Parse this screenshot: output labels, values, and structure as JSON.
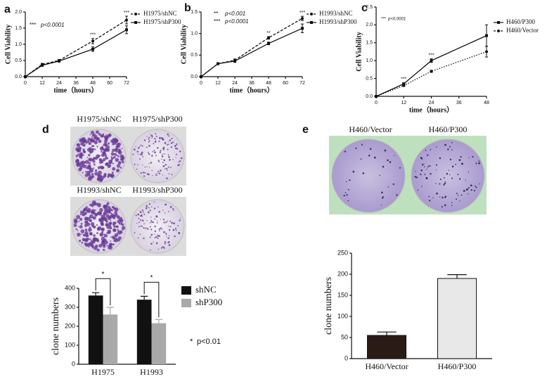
{
  "chart_data": [
    {
      "type": "line",
      "label": "a",
      "x": [
        0,
        12,
        24,
        48,
        72
      ],
      "xlim": [
        0,
        72
      ],
      "xticks": [
        0,
        12,
        24,
        36,
        48,
        60,
        72
      ],
      "ylim": [
        0,
        2
      ],
      "yticks": [
        {
          "value": 0,
          "label": "0.0"
        },
        {
          "value": 0.5,
          "label": "0.5"
        },
        {
          "value": 1,
          "label": "1.0"
        },
        {
          "value": 1.5,
          "label": "1.5"
        },
        {
          "value": 2,
          "label": "2.0"
        }
      ],
      "xlabel": "time（hours）",
      "ylabel": "Cell Viability",
      "series": [
        {
          "name": "H1975/shNC",
          "color": "#111111",
          "dash": true,
          "marker": "circle",
          "values": [
            0,
            0.38,
            0.5,
            1.1,
            1.75
          ],
          "errors": [
            null,
            0.03,
            0.03,
            0.08,
            0.12
          ]
        },
        {
          "name": "H1975/shP300",
          "color": "#111111",
          "dash": false,
          "marker": "square",
          "values": [
            0,
            0.35,
            0.48,
            0.85,
            1.45
          ],
          "errors": [
            null,
            0.03,
            0.03,
            0.07,
            0.12
          ]
        }
      ],
      "stats": [
        {
          "stars": "***",
          "p": "p<0.0001"
        }
      ],
      "significance": [
        {
          "x": 48,
          "label": "***"
        },
        {
          "x": 72,
          "label": "***"
        }
      ]
    },
    {
      "type": "line",
      "label": "b",
      "x": [
        0,
        12,
        24,
        48,
        72
      ],
      "xlim": [
        0,
        72
      ],
      "xticks": [
        0,
        12,
        24,
        36,
        48,
        60,
        72
      ],
      "ylim": [
        0,
        1.5
      ],
      "yticks": [
        {
          "value": 0,
          "label": "0.0"
        },
        {
          "value": 0.5,
          "label": "0.5"
        },
        {
          "value": 1,
          "label": "1.0"
        },
        {
          "value": 1.5,
          "label": "1.5"
        }
      ],
      "xlabel": "time（hours）",
      "ylabel": "Cell Viability",
      "series": [
        {
          "name": "H1993/shNC",
          "color": "#111111",
          "dash": true,
          "marker": "circle",
          "values": [
            0,
            0.3,
            0.38,
            0.9,
            1.35
          ],
          "errors": [
            null,
            0.02,
            0.03,
            0.03,
            0.05
          ]
        },
        {
          "name": "H1993/shP300",
          "color": "#111111",
          "dash": false,
          "marker": "square",
          "values": [
            0,
            0.3,
            0.36,
            0.77,
            1.12
          ],
          "errors": [
            null,
            0.02,
            0.03,
            0.03,
            0.1
          ]
        }
      ],
      "stats": [
        {
          "stars": "**",
          "p": "p<0.001"
        },
        {
          "stars": "***",
          "p": "p<0.0001"
        }
      ],
      "significance": [
        {
          "x": 48,
          "label": "**"
        },
        {
          "x": 72,
          "label": "***"
        }
      ]
    },
    {
      "type": "line",
      "label": "c",
      "x": [
        0,
        12,
        24,
        48
      ],
      "xlim": [
        0,
        48
      ],
      "xticks": [
        0,
        12,
        24,
        36,
        48
      ],
      "ylim": [
        0,
        2.5
      ],
      "yticks": [
        {
          "value": 0,
          "label": "0.0"
        },
        {
          "value": 0.5,
          "label": "0.5"
        },
        {
          "value": 1,
          "label": "1.0"
        },
        {
          "value": 1.5,
          "label": "1.5"
        },
        {
          "value": 2,
          "label": "2.0"
        },
        {
          "value": 2.5,
          "label": "2.5"
        }
      ],
      "xlabel": "time（hours）",
      "ylabel": "Cell Viability",
      "series": [
        {
          "name": "H460/P300",
          "color": "#111111",
          "dash": false,
          "marker": "square",
          "values": [
            0,
            0.35,
            1.0,
            1.7
          ],
          "errors": [
            null,
            0.03,
            0.05,
            0.3
          ]
        },
        {
          "name": "H460/Vector",
          "color": "#111111",
          "dash": true,
          "marker": "circle",
          "values": [
            0,
            0.3,
            0.7,
            1.25
          ],
          "errors": [
            null,
            0.02,
            0.03,
            0.15
          ]
        }
      ],
      "stats": [
        {
          "stars": "***",
          "p": "p<0.0001"
        }
      ],
      "significance": [
        {
          "x": 12,
          "label": "***"
        },
        {
          "x": 24,
          "label": "***"
        }
      ]
    },
    {
      "type": "bar",
      "label": "d",
      "image_labels": [
        "H1975/shNC",
        "H1975/shP300",
        "H1993/shNC",
        "H1993/shP300"
      ],
      "categories": [
        "H1975",
        "H1993"
      ],
      "ylim": [
        0,
        400
      ],
      "yticks": [
        0,
        100,
        200,
        300,
        400
      ],
      "ylabel": "clone numbers",
      "series": [
        {
          "name": "shNC",
          "color": "#111111",
          "values": [
            362,
            340
          ],
          "errors": [
            15,
            18
          ]
        },
        {
          "name": "shP300",
          "color": "#a9a9a9",
          "values": [
            262,
            216
          ],
          "errors": [
            38,
            20
          ]
        }
      ],
      "significance": [
        "*",
        "*"
      ],
      "note_star": "*",
      "note_p": "p<0.01"
    },
    {
      "type": "bar",
      "label": "e",
      "image_labels": [
        "H460/Vector",
        "H460/P300"
      ],
      "categories": [
        "H460/Vector",
        "H460/P300"
      ],
      "ylim": [
        0,
        250
      ],
      "yticks": [
        0,
        50,
        100,
        150,
        200,
        250
      ],
      "ylabel": "clone numbers",
      "series": [
        {
          "colors": [
            "#2b1b17",
            "#e8e8e8"
          ],
          "values": [
            55,
            190
          ],
          "errors": [
            8,
            9
          ]
        }
      ]
    }
  ]
}
